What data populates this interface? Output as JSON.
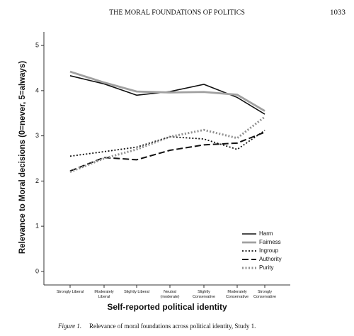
{
  "header": {
    "title": "THE MORAL FOUNDATIONS OF POLITICS",
    "page": "1033"
  },
  "chart_data": {
    "type": "line",
    "y_label": "Relevance to Moral decisions (0=never, 5=always)",
    "x_label": "Self-reported political identity",
    "categories": [
      "Strongly Liberal",
      "Moderately\nLiberal",
      "Slightly Liberal",
      "Neutral\n(moderate)",
      "Slightly\nConservative",
      "Moderately\nConservative",
      "Strongly\nConservative"
    ],
    "series": [
      {
        "name": "Harm",
        "color": "#111111",
        "style": "solid",
        "width": 1.6,
        "values": [
          4.33,
          4.15,
          3.9,
          3.98,
          4.14,
          3.85,
          3.48
        ]
      },
      {
        "name": "Fairness",
        "color": "#a0a0a0",
        "style": "solid",
        "width": 2.8,
        "values": [
          4.42,
          4.18,
          3.98,
          3.96,
          3.97,
          3.91,
          3.55
        ]
      },
      {
        "name": "Ingroup",
        "color": "#111111",
        "style": "dotted",
        "width": 1.8,
        "values": [
          2.55,
          2.65,
          2.75,
          2.98,
          2.93,
          2.7,
          3.12
        ]
      },
      {
        "name": "Authority",
        "color": "#111111",
        "style": "dashed",
        "width": 2,
        "values": [
          2.22,
          2.52,
          2.47,
          2.68,
          2.8,
          2.84,
          3.08
        ]
      },
      {
        "name": "Purity",
        "color": "#909090",
        "style": "dotted",
        "width": 3,
        "values": [
          2.2,
          2.5,
          2.7,
          2.98,
          3.13,
          2.95,
          3.42
        ]
      }
    ],
    "ylim": [
      -0.3,
      5.3
    ],
    "yticks": [
      0,
      1,
      2,
      3,
      4,
      5
    ],
    "legend": "bottom-right"
  },
  "caption": {
    "label": "Figure 1.",
    "text": "Relevance of moral foundations across political identity, Study 1."
  }
}
